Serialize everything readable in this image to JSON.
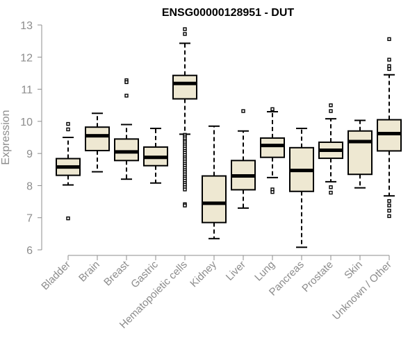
{
  "chart_data": {
    "type": "boxplot",
    "title": "ENSG00000128951 - DUT",
    "xlabel": "",
    "ylabel": "Expression",
    "ylim": [
      6,
      13
    ],
    "yticks": [
      6,
      7,
      8,
      9,
      10,
      11,
      12,
      13
    ],
    "categories": [
      "Bladder",
      "Brain",
      "Breast",
      "Gastric",
      "Hematopoietic cells",
      "Kidney",
      "Liver",
      "Lung",
      "Pancreas",
      "Prostate",
      "Skin",
      "Unknown / Other"
    ],
    "boxes": [
      {
        "name": "Bladder",
        "min": 8.02,
        "q1": 8.32,
        "median": 8.58,
        "q3": 8.84,
        "max": 9.5,
        "outliers": [
          9.92,
          9.75,
          6.98
        ]
      },
      {
        "name": "Brain",
        "min": 8.43,
        "q1": 9.09,
        "median": 9.55,
        "q3": 9.82,
        "max": 10.25,
        "outliers": []
      },
      {
        "name": "Breast",
        "min": 8.2,
        "q1": 8.78,
        "median": 9.05,
        "q3": 9.45,
        "max": 9.9,
        "outliers": [
          11.28,
          11.22,
          10.8
        ]
      },
      {
        "name": "Gastric",
        "min": 8.08,
        "q1": 8.62,
        "median": 8.88,
        "q3": 9.2,
        "max": 9.78,
        "outliers": []
      },
      {
        "name": "Hematopoietic cells",
        "min": 9.6,
        "q1": 10.7,
        "median": 11.18,
        "q3": 11.43,
        "max": 12.43,
        "outliers": [
          12.87,
          12.72,
          9.58,
          9.53,
          9.47,
          9.4,
          9.35,
          9.28,
          9.22,
          9.15,
          9.08,
          9.02,
          8.95,
          8.88,
          8.82,
          8.75,
          8.68,
          8.62,
          8.55,
          8.48,
          8.42,
          8.35,
          8.28,
          8.22,
          8.15,
          8.08,
          8.02,
          7.95,
          7.88,
          7.42,
          7.38
        ]
      },
      {
        "name": "Kidney",
        "min": 6.35,
        "q1": 6.85,
        "median": 7.45,
        "q3": 8.3,
        "max": 9.85,
        "outliers": []
      },
      {
        "name": "Liver",
        "min": 7.3,
        "q1": 7.87,
        "median": 8.3,
        "q3": 8.78,
        "max": 9.7,
        "outliers": [
          10.32
        ]
      },
      {
        "name": "Lung",
        "min": 8.25,
        "q1": 8.88,
        "median": 9.25,
        "q3": 9.48,
        "max": 10.3,
        "outliers": [
          10.38,
          7.88,
          7.8
        ]
      },
      {
        "name": "Pancreas",
        "min": 6.08,
        "q1": 7.82,
        "median": 8.47,
        "q3": 9.18,
        "max": 9.78,
        "outliers": []
      },
      {
        "name": "Prostate",
        "min": 8.12,
        "q1": 8.85,
        "median": 9.1,
        "q3": 9.35,
        "max": 10.08,
        "outliers": [
          10.5,
          10.32,
          7.95,
          7.78
        ]
      },
      {
        "name": "Skin",
        "min": 7.93,
        "q1": 8.35,
        "median": 9.37,
        "q3": 9.7,
        "max": 10.03,
        "outliers": []
      },
      {
        "name": "Unknown / Other",
        "min": 7.68,
        "q1": 9.08,
        "median": 9.62,
        "q3": 10.05,
        "max": 11.45,
        "outliers": [
          12.56,
          11.92,
          11.72,
          11.63,
          7.52,
          7.38,
          7.22,
          7.05
        ]
      }
    ],
    "colors": {
      "box_fill": "#eee8d2",
      "box_stroke": "#000000",
      "median": "#000000",
      "axis": "#8c8c8c"
    }
  }
}
